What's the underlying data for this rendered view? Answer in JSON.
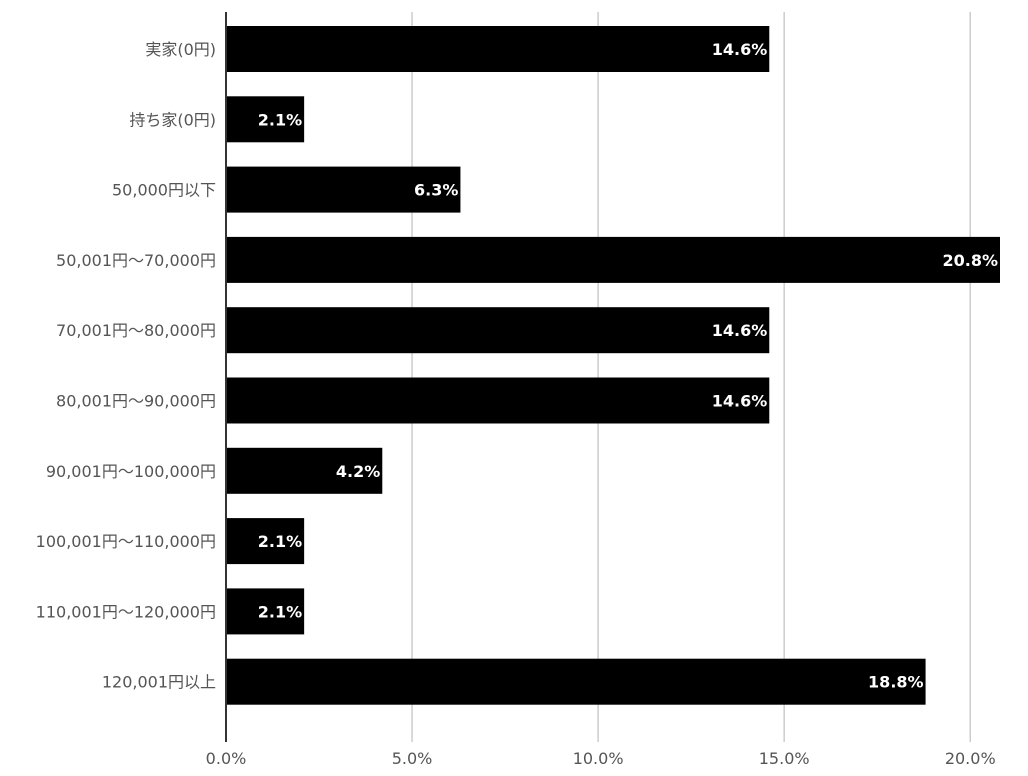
{
  "chart_data": {
    "type": "bar",
    "orientation": "horizontal",
    "categories": [
      "実家(0円)",
      "持ち家(0円)",
      "50,000円以下",
      "50,001円〜70,000円",
      "70,001円〜80,000円",
      "80,001円〜90,000円",
      "90,001円〜100,000円",
      "100,001円〜110,000円",
      "110,001円〜120,000円",
      "120,001円以上"
    ],
    "values": [
      14.6,
      2.1,
      6.3,
      20.8,
      14.6,
      14.6,
      4.2,
      2.1,
      2.1,
      18.8
    ],
    "value_labels": [
      "14.6%",
      "2.1%",
      "6.3%",
      "20.8%",
      "14.6%",
      "14.6%",
      "4.2%",
      "2.1%",
      "2.1%",
      "18.8%"
    ],
    "xlim": [
      0,
      20.8
    ],
    "x_ticks": [
      0,
      5,
      10,
      15,
      20
    ],
    "x_tick_labels": [
      "0.0%",
      "5.0%",
      "10.0%",
      "15.0%",
      "20.0%"
    ],
    "grid": "vertical",
    "bar_color": "#000000",
    "grid_color": "#cccccc",
    "axis_color": "#333333"
  }
}
